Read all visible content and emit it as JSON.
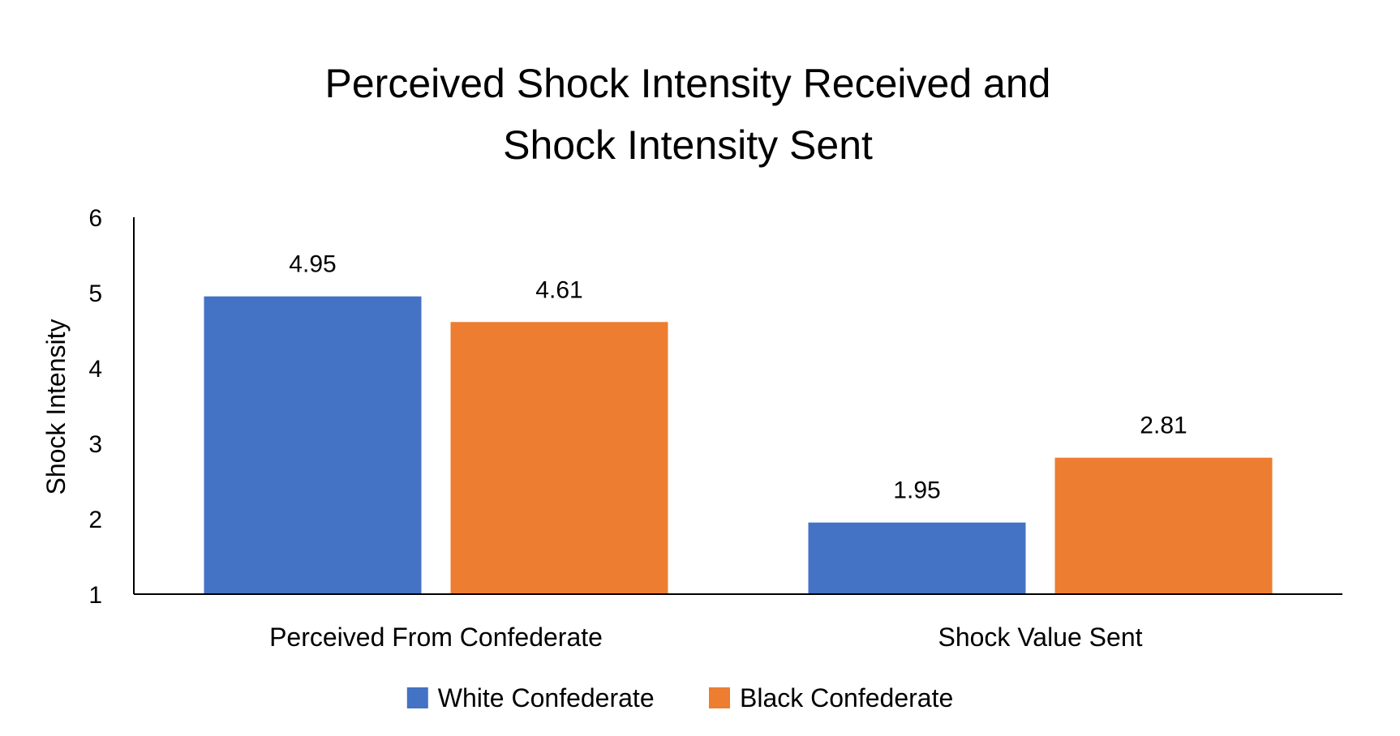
{
  "chart_data": {
    "type": "bar",
    "title_lines": [
      "Perceived Shock Intensity Received and",
      "Shock Intensity Sent"
    ],
    "xlabel": "",
    "ylabel": "Shock Intensity",
    "ylim": [
      1,
      6
    ],
    "yticks": [
      "1",
      "2",
      "3",
      "4",
      "5",
      "6"
    ],
    "grid": false,
    "legend_position": "bottom",
    "categories": [
      "Perceived From Confederate",
      "Shock Value Sent"
    ],
    "series": [
      {
        "name": "White Confederate",
        "color": "#4472C4",
        "values": [
          4.95,
          1.95
        ],
        "labels": [
          "4.95",
          "1.95"
        ]
      },
      {
        "name": "Black Confederate",
        "color": "#ED7D31",
        "values": [
          4.61,
          2.81
        ],
        "labels": [
          "4.61",
          "2.81"
        ]
      }
    ]
  }
}
